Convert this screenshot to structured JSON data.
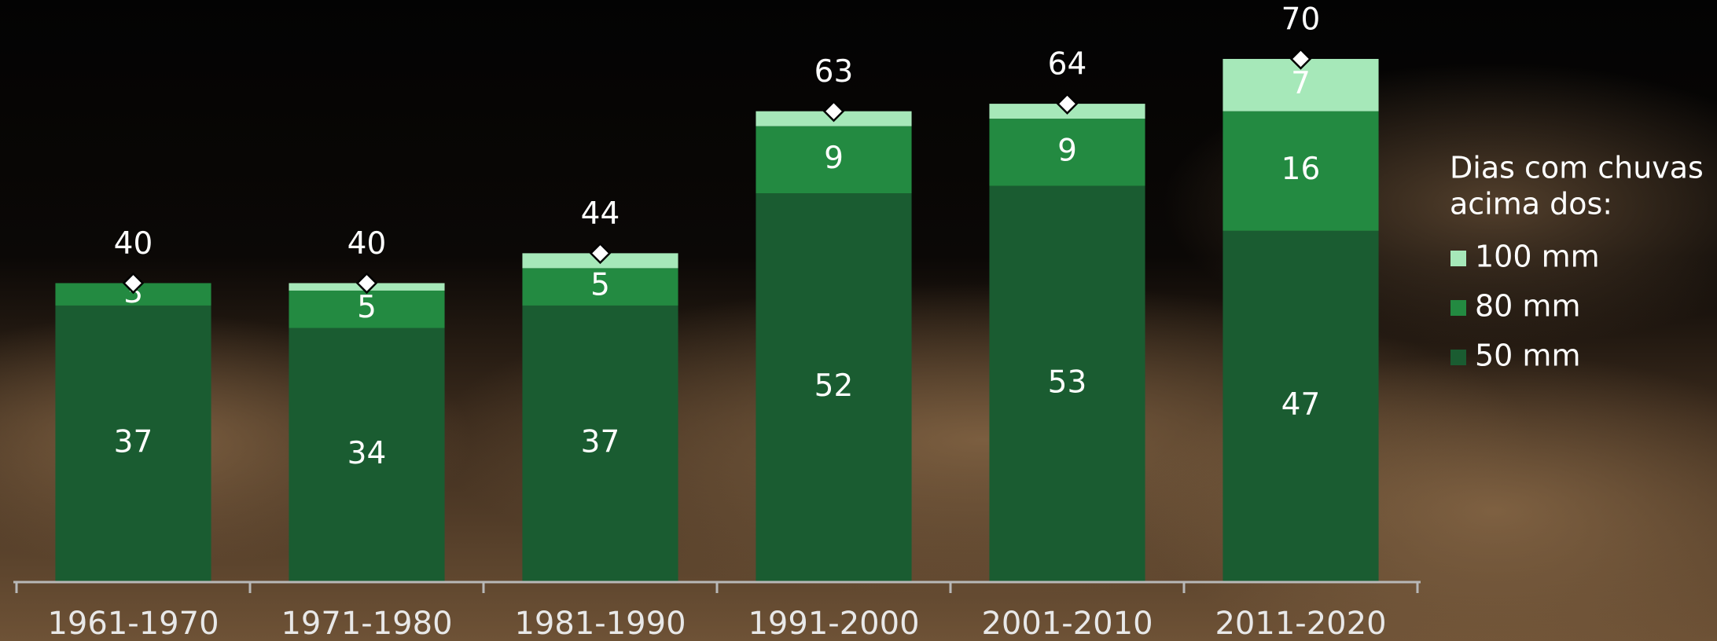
{
  "chart_data": {
    "type": "stacked-bar",
    "categories": [
      "1961-1970",
      "1971-1980",
      "1981-1990",
      "1991-2000",
      "2001-2010",
      "2011-2020"
    ],
    "series": [
      {
        "name": "50 mm",
        "color": "#1a5c31",
        "values": [
          37,
          34,
          37,
          52,
          53,
          47
        ]
      },
      {
        "name": "80 mm",
        "color": "#238a41",
        "values": [
          3,
          5,
          5,
          9,
          9,
          16
        ]
      },
      {
        "name": "100 mm",
        "color": "#a6e8b9",
        "values": [
          0,
          1,
          2,
          2,
          2,
          7
        ]
      }
    ],
    "totals": [
      40,
      40,
      44,
      63,
      64,
      70
    ],
    "legend_title": [
      "Dias com chuvas",
      "acima dos:"
    ],
    "ylim": [
      0,
      70
    ]
  }
}
